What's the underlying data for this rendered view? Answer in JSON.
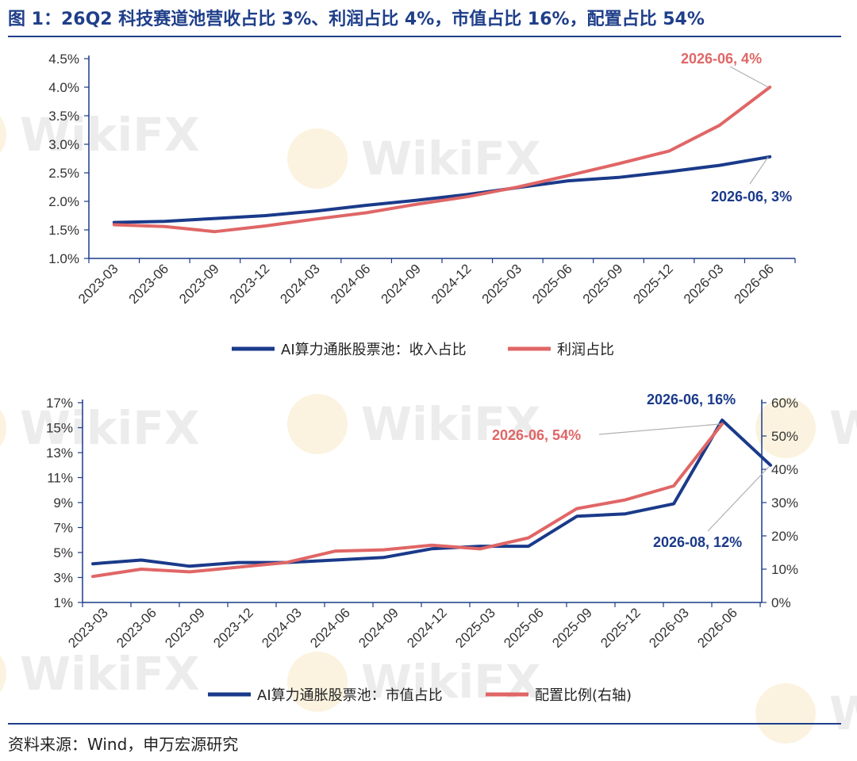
{
  "title": "图 1：26Q2 科技赛道池营收占比 3%、利润占比 4%，市值占比 16%，配置占比 54%",
  "source": "资料来源：Wind，申万宏源研究",
  "watermark": "WikiFX",
  "colors": {
    "navy": "#1a3a8a",
    "red": "#e06666",
    "accent": "#1f3f8a"
  },
  "chart_data": [
    {
      "type": "line",
      "x": [
        "2023-03",
        "2023-06",
        "2023-09",
        "2023-12",
        "2024-03",
        "2024-06",
        "2024-09",
        "2024-12",
        "2025-03",
        "2025-06",
        "2025-09",
        "2025-12",
        "2026-03",
        "2026-06"
      ],
      "yticks": [
        "1.0%",
        "1.5%",
        "2.0%",
        "2.5%",
        "3.0%",
        "3.5%",
        "4.0%",
        "4.5%"
      ],
      "ylim": [
        1.0,
        4.5
      ],
      "series": [
        {
          "name": "AI算力通胀股票池：收入占比",
          "color": "#1a3a8a",
          "values": [
            1.63,
            1.65,
            1.7,
            1.75,
            1.83,
            1.93,
            2.02,
            2.12,
            2.24,
            2.36,
            2.42,
            2.52,
            2.63,
            2.78
          ]
        },
        {
          "name": "利润占比",
          "color": "#e06666",
          "values": [
            1.59,
            1.56,
            1.47,
            1.57,
            1.69,
            1.8,
            1.95,
            2.08,
            2.25,
            2.45,
            2.66,
            2.88,
            3.33,
            4.0
          ]
        }
      ],
      "annotations": [
        {
          "text": "2026-06, 4%",
          "color": "#e06666",
          "series": 1,
          "point": 13
        },
        {
          "text": "2026-06, 3%",
          "color": "#1a3a8a",
          "series": 0,
          "point": 13
        }
      ],
      "legend": "bottom"
    },
    {
      "type": "line",
      "x": [
        "2023-03",
        "2023-06",
        "2023-09",
        "2023-12",
        "2024-03",
        "2024-06",
        "2024-09",
        "2024-12",
        "2025-03",
        "2025-06",
        "2025-09",
        "2025-12",
        "2026-03",
        "2026-06",
        "2026-08"
      ],
      "xticks": [
        "2023-03",
        "2023-06",
        "2023-09",
        "2023-12",
        "2024-03",
        "2024-06",
        "2024-09",
        "2024-12",
        "2025-03",
        "2025-06",
        "2025-09",
        "2025-12",
        "2026-03",
        "2026-06"
      ],
      "yticks_left": [
        "1%",
        "3%",
        "5%",
        "7%",
        "9%",
        "11%",
        "13%",
        "15%",
        "17%"
      ],
      "ylim_left": [
        1,
        17
      ],
      "yticks_right": [
        "0%",
        "10%",
        "20%",
        "30%",
        "40%",
        "50%",
        "60%"
      ],
      "ylim_right": [
        0,
        60
      ],
      "series": [
        {
          "name": "AI算力通胀股票池：市值占比",
          "color": "#1a3a8a",
          "axis": "left",
          "values": [
            4.1,
            4.4,
            3.9,
            4.2,
            4.2,
            4.4,
            4.6,
            5.3,
            5.5,
            5.5,
            7.9,
            8.1,
            8.9,
            15.6,
            12.0
          ]
        },
        {
          "name": "配置比例(右轴)",
          "color": "#e06666",
          "axis": "right",
          "values": [
            7.8,
            10.0,
            9.2,
            10.6,
            12.0,
            15.4,
            15.8,
            17.2,
            16.1,
            19.4,
            28.2,
            30.8,
            35.0,
            53.6,
            null
          ]
        }
      ],
      "annotations": [
        {
          "text": "2026-06, 16%",
          "color": "#1a3a8a",
          "series": 0,
          "point": 13
        },
        {
          "text": "2026-06, 54%",
          "color": "#e06666",
          "series": 1,
          "point": 13
        },
        {
          "text": "2026-08, 12%",
          "color": "#1a3a8a",
          "series": 0,
          "point": 14
        }
      ],
      "legend": "bottom"
    }
  ]
}
